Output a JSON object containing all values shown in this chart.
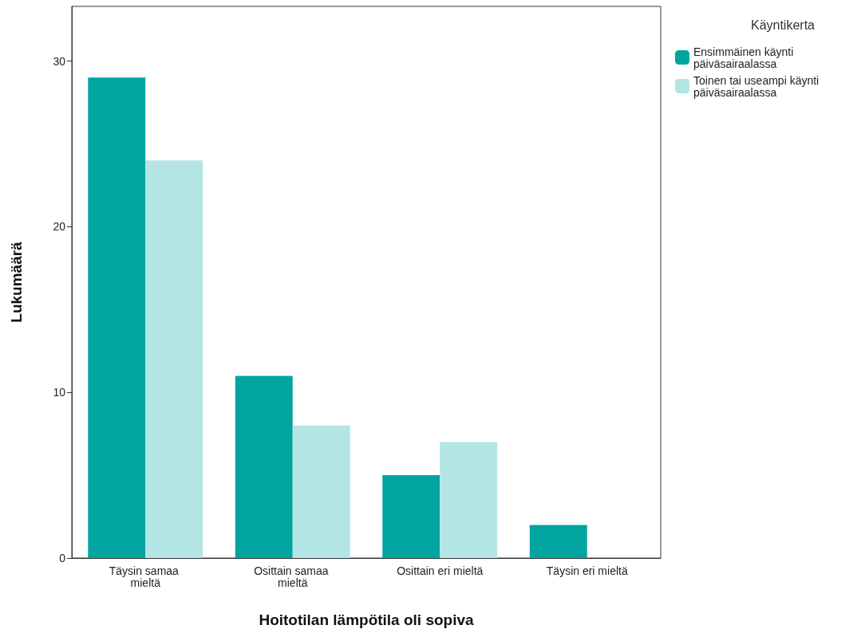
{
  "chart_data": {
    "type": "bar",
    "xlabel": "Hoitotilan lämpötila oli sopiva",
    "ylabel": "Lukumäärä",
    "legend_title": "Käyntikerta",
    "categories": [
      "Täysin samaa mieltä",
      "Osittain samaa mieltä",
      "Osittain eri mieltä",
      "Täysin eri mieltä"
    ],
    "series": [
      {
        "name": "Ensimmäinen käynti päiväsairaalassa",
        "color": "#00a5a0",
        "values": [
          29,
          11,
          5,
          2
        ]
      },
      {
        "name": "Toinen tai useampi käynti päiväsairaalassa",
        "color": "#b3e5e5",
        "values": [
          24,
          8,
          7,
          0
        ]
      }
    ],
    "ylim": [
      0,
      33.3
    ],
    "yticks": [
      0,
      10,
      20,
      30
    ],
    "grid": false,
    "legend": "top right"
  }
}
